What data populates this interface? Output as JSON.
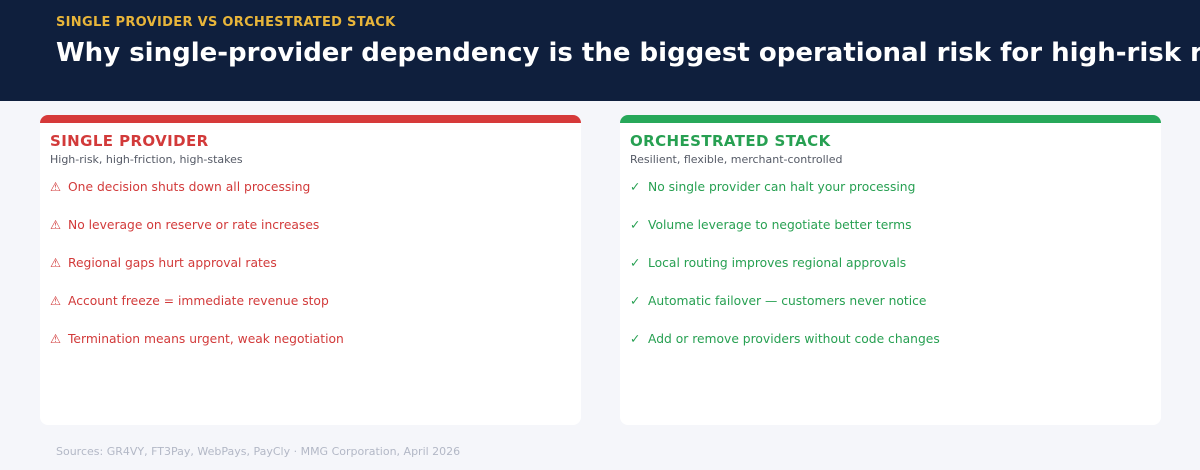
{
  "header": {
    "eyebrow": "SINGLE PROVIDER VS ORCHESTRATED STACK",
    "title": "Why single-provider dependency is the biggest operational risk for high-risk r"
  },
  "left": {
    "heading": "SINGLE PROVIDER",
    "subheading": "High-risk, high-friction, high-stakes",
    "icon": "⚠",
    "items": [
      "One decision shuts down all processing",
      "No leverage on reserve or rate increases",
      "Regional gaps hurt approval rates",
      "Account freeze = immediate revenue stop",
      "Termination means urgent, weak negotiation"
    ]
  },
  "right": {
    "heading": "ORCHESTRATED STACK",
    "subheading": "Resilient, flexible, merchant-controlled",
    "icon": "✓",
    "items": [
      "No single provider can halt your processing",
      "Volume leverage to negotiate better terms",
      "Local routing improves regional approvals",
      "Automatic failover — customers never notice",
      "Add or remove providers without code changes"
    ]
  },
  "footer": {
    "source": "Sources: GR4VY, FT3Pay, WebPays, PayCly · MMG Corporation, April 2026"
  }
}
